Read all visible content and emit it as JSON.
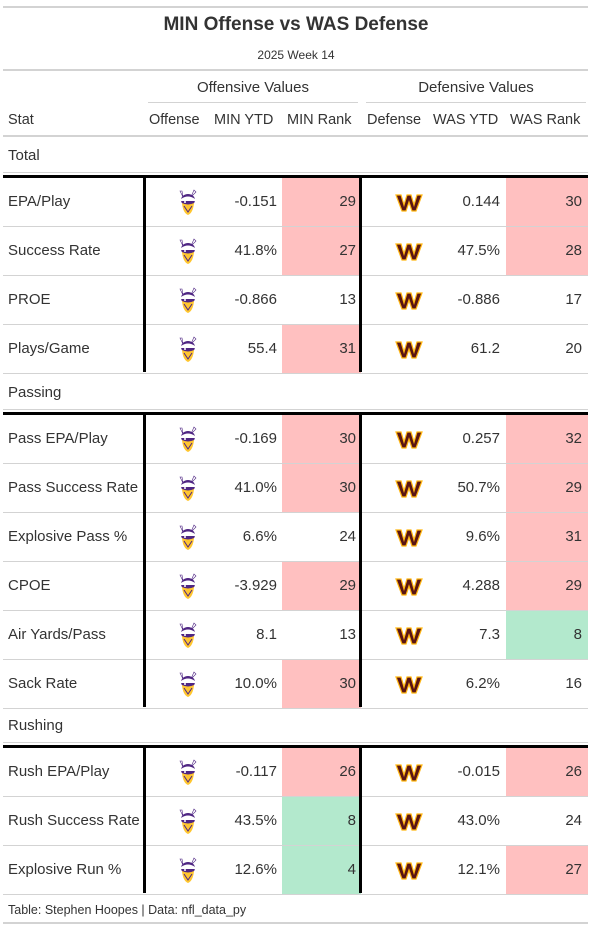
{
  "title": "MIN Offense vs WAS Defense",
  "subtitle": "2025 Week 14",
  "spanners": {
    "offense": "Offensive Values",
    "defense": "Defensive Values"
  },
  "columns": {
    "stat": "Stat",
    "offense": "Offense",
    "min_ytd": "MIN YTD",
    "min_rank": "MIN Rank",
    "defense": "Defense",
    "was_ytd": "WAS YTD",
    "was_rank": "WAS Rank"
  },
  "colors": {
    "bad": "#ffc0c0",
    "good": "#b3e9cd",
    "vikings_purple": "#4f2683",
    "vikings_gold": "#ffc62f",
    "commanders_burgundy": "#5a1414",
    "commanders_gold": "#ffb612"
  },
  "sections": [
    {
      "label": "Total",
      "rows": [
        {
          "stat": "EPA/Play",
          "min_ytd": "-0.151",
          "min_rank": "29",
          "min_rank_color": "bad",
          "was_ytd": "0.144",
          "was_rank": "30",
          "was_rank_color": "bad"
        },
        {
          "stat": "Success Rate",
          "min_ytd": "41.8%",
          "min_rank": "27",
          "min_rank_color": "bad",
          "was_ytd": "47.5%",
          "was_rank": "28",
          "was_rank_color": "bad"
        },
        {
          "stat": "PROE",
          "min_ytd": "-0.866",
          "min_rank": "13",
          "min_rank_color": "none",
          "was_ytd": "-0.886",
          "was_rank": "17",
          "was_rank_color": "none"
        },
        {
          "stat": "Plays/Game",
          "min_ytd": "55.4",
          "min_rank": "31",
          "min_rank_color": "bad",
          "was_ytd": "61.2",
          "was_rank": "20",
          "was_rank_color": "none"
        }
      ]
    },
    {
      "label": "Passing",
      "rows": [
        {
          "stat": "Pass EPA/Play",
          "min_ytd": "-0.169",
          "min_rank": "30",
          "min_rank_color": "bad",
          "was_ytd": "0.257",
          "was_rank": "32",
          "was_rank_color": "bad"
        },
        {
          "stat": "Pass Success Rate",
          "min_ytd": "41.0%",
          "min_rank": "30",
          "min_rank_color": "bad",
          "was_ytd": "50.7%",
          "was_rank": "29",
          "was_rank_color": "bad"
        },
        {
          "stat": "Explosive Pass %",
          "min_ytd": "6.6%",
          "min_rank": "24",
          "min_rank_color": "none",
          "was_ytd": "9.6%",
          "was_rank": "31",
          "was_rank_color": "bad"
        },
        {
          "stat": "CPOE",
          "min_ytd": "-3.929",
          "min_rank": "29",
          "min_rank_color": "bad",
          "was_ytd": "4.288",
          "was_rank": "29",
          "was_rank_color": "bad"
        },
        {
          "stat": "Air Yards/Pass",
          "min_ytd": "8.1",
          "min_rank": "13",
          "min_rank_color": "none",
          "was_ytd": "7.3",
          "was_rank": "8",
          "was_rank_color": "good"
        },
        {
          "stat": "Sack Rate",
          "min_ytd": "10.0%",
          "min_rank": "30",
          "min_rank_color": "bad",
          "was_ytd": "6.2%",
          "was_rank": "16",
          "was_rank_color": "none"
        }
      ]
    },
    {
      "label": "Rushing",
      "rows": [
        {
          "stat": "Rush EPA/Play",
          "min_ytd": "-0.117",
          "min_rank": "26",
          "min_rank_color": "bad",
          "was_ytd": "-0.015",
          "was_rank": "26",
          "was_rank_color": "bad"
        },
        {
          "stat": "Rush Success Rate",
          "min_ytd": "43.5%",
          "min_rank": "8",
          "min_rank_color": "good",
          "was_ytd": "43.0%",
          "was_rank": "24",
          "was_rank_color": "none"
        },
        {
          "stat": "Explosive Run %",
          "min_ytd": "12.6%",
          "min_rank": "4",
          "min_rank_color": "good",
          "was_ytd": "12.1%",
          "was_rank": "27",
          "was_rank_color": "bad"
        }
      ]
    }
  ],
  "footer": "Table: Stephen Hoopes | Data: nfl_data_py",
  "icons": {
    "offense": "vikings-logo-icon",
    "defense": "commanders-logo-icon"
  }
}
